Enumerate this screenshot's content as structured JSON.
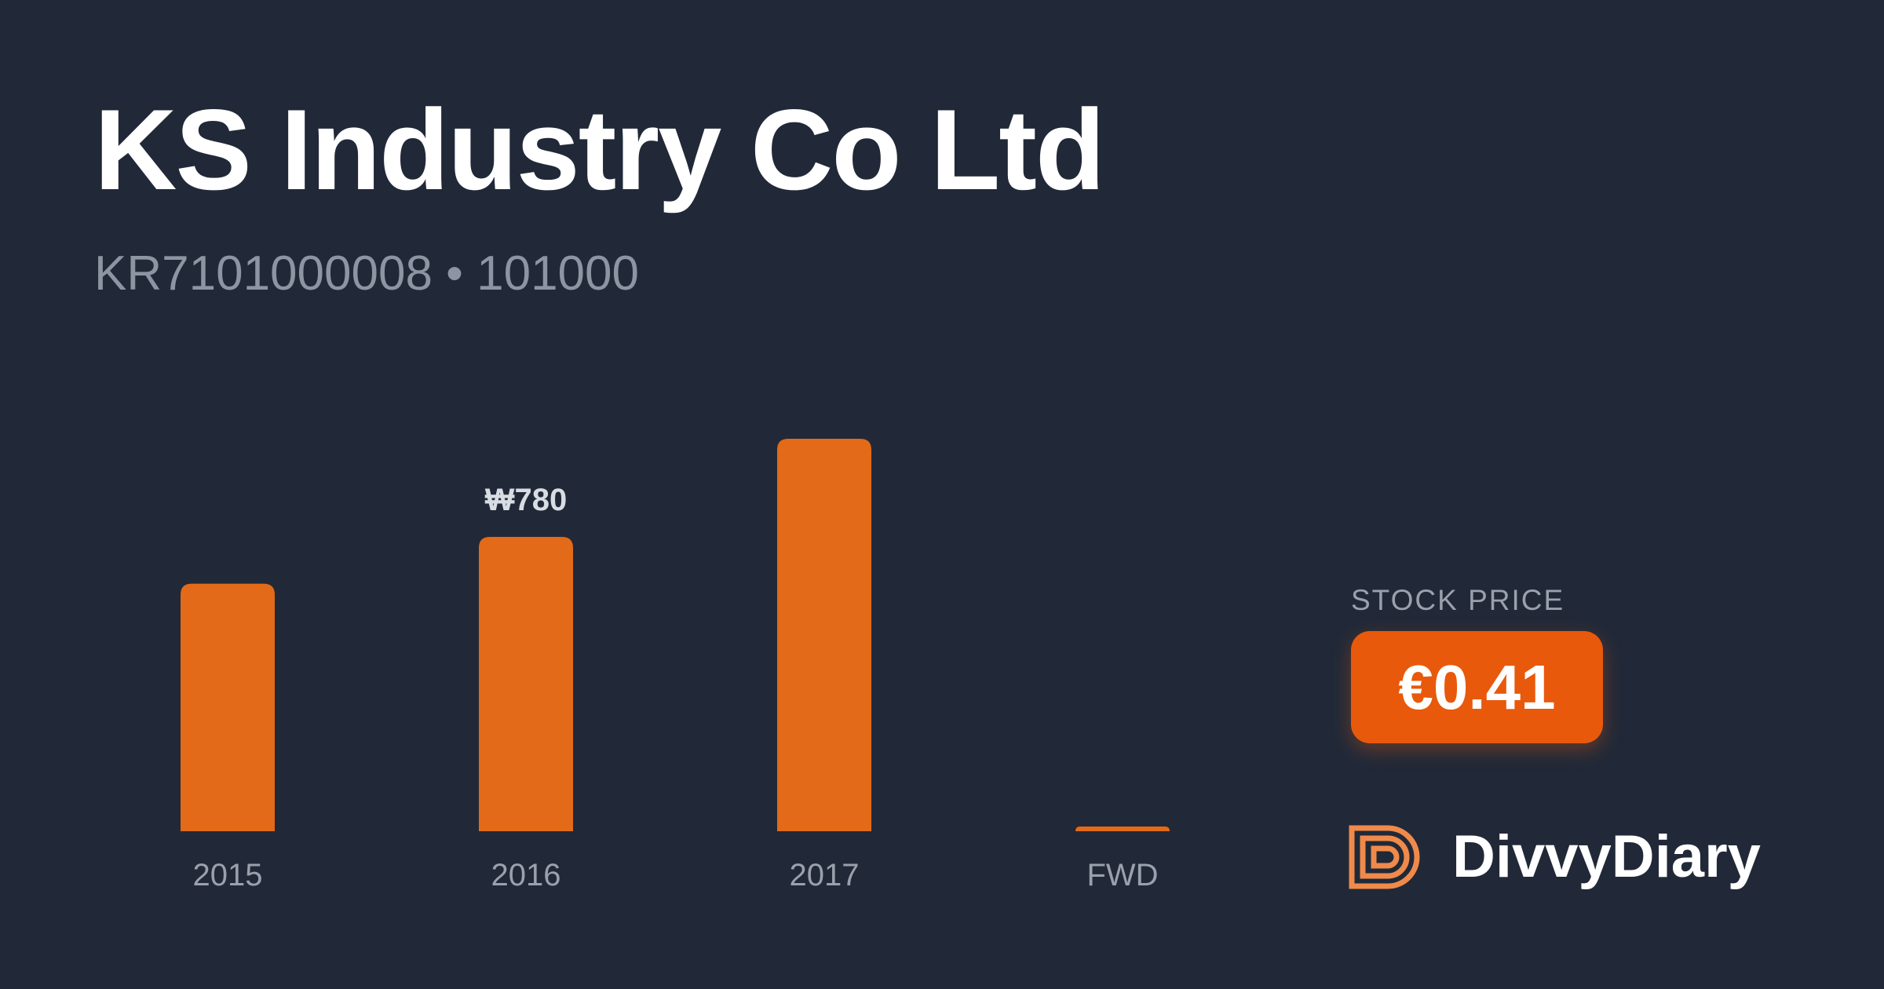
{
  "header": {
    "title": "KS Industry Co Ltd",
    "subtitle": "KR7101000008 • 101000"
  },
  "price": {
    "label": "STOCK PRICE",
    "value": "€0.41"
  },
  "brand": {
    "name": "DivvyDiary",
    "logo_icon": "divvydiary-logo-icon"
  },
  "colors": {
    "background": "#212938",
    "bar": "#e26a19",
    "accent": "#e8590c",
    "muted_text": "#8d95a3"
  },
  "chart_data": {
    "type": "bar",
    "categories": [
      "2015",
      "2016",
      "2017",
      "FWD"
    ],
    "values": [
      656,
      780,
      1040,
      12
    ],
    "data_labels": [
      "",
      "₩780",
      "",
      ""
    ],
    "currency": "₩",
    "ylim": [
      0,
      1040
    ],
    "grid": false,
    "legend": "none"
  }
}
